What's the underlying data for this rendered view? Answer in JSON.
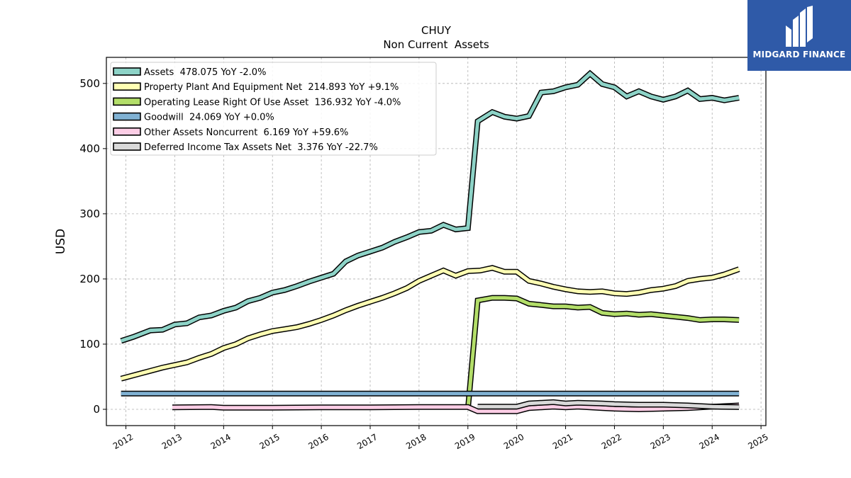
{
  "logo": {
    "brand": "MIDGARD FINANCE",
    "color": "#2f5aa8"
  },
  "chart_data": {
    "type": "line",
    "title": "CHUY",
    "subtitle": "Non Current  Assets",
    "ylabel": "USD",
    "xlabel": "",
    "xlim": [
      2011.6,
      2025.1
    ],
    "ylim": [
      -25,
      540
    ],
    "yticks": [
      0,
      100,
      200,
      300,
      400,
      500
    ],
    "xticks": [
      2012,
      2013,
      2014,
      2015,
      2016,
      2017,
      2018,
      2019,
      2020,
      2021,
      2022,
      2023,
      2024,
      2025
    ],
    "grid": true,
    "legend_position": "top-left",
    "series": [
      {
        "name": "Assets",
        "legend": "Assets  478.075 YoY -2.0%",
        "color": "#8dd3c7",
        "x": [
          2011.9,
          2012.15,
          2012.5,
          2012.75,
          2013.0,
          2013.25,
          2013.5,
          2013.75,
          2014.0,
          2014.25,
          2014.5,
          2014.75,
          2015.0,
          2015.25,
          2015.5,
          2015.75,
          2016.0,
          2016.25,
          2016.5,
          2016.75,
          2017.0,
          2017.25,
          2017.5,
          2017.75,
          2018.0,
          2018.25,
          2018.5,
          2018.75,
          2019.0,
          2019.2,
          2019.5,
          2019.75,
          2020.0,
          2020.25,
          2020.5,
          2020.75,
          2021.0,
          2021.25,
          2021.5,
          2021.75,
          2022.0,
          2022.25,
          2022.5,
          2022.75,
          2023.0,
          2023.25,
          2023.5,
          2023.75,
          2024.0,
          2024.25,
          2024.55
        ],
        "values": [
          105,
          111,
          121,
          122,
          130,
          132,
          141,
          144,
          151,
          156,
          166,
          171,
          179,
          183,
          189,
          196,
          202,
          208,
          227,
          236,
          242,
          248,
          257,
          264,
          272,
          274,
          283,
          276,
          278,
          442,
          456,
          449,
          446,
          450,
          486,
          488,
          494,
          498,
          515,
          499,
          494,
          480,
          488,
          480,
          475,
          480,
          489,
          476,
          478,
          474,
          478
        ]
      },
      {
        "name": "Property Plant And Equipment Net",
        "legend": "Property Plant And Equipment Net  214.893 YoY +9.1%",
        "color": "#ffffb3",
        "x": [
          2011.9,
          2012.25,
          2012.5,
          2012.75,
          2013.0,
          2013.25,
          2013.5,
          2013.75,
          2014.0,
          2014.25,
          2014.5,
          2014.75,
          2015.0,
          2015.25,
          2015.5,
          2015.75,
          2016.0,
          2016.25,
          2016.5,
          2016.75,
          2017.0,
          2017.25,
          2017.5,
          2017.75,
          2018.0,
          2018.25,
          2018.5,
          2018.75,
          2019.0,
          2019.25,
          2019.5,
          2019.75,
          2020.0,
          2020.25,
          2020.5,
          2020.75,
          2021.0,
          2021.25,
          2021.5,
          2021.75,
          2022.0,
          2022.25,
          2022.5,
          2022.75,
          2023.0,
          2023.25,
          2023.5,
          2023.75,
          2024.0,
          2024.25,
          2024.55
        ],
        "values": [
          47,
          54,
          59,
          64,
          68,
          72,
          79,
          85,
          94,
          100,
          109,
          115,
          120,
          123,
          126,
          131,
          137,
          144,
          152,
          159,
          165,
          171,
          178,
          186,
          197,
          205,
          213,
          205,
          212,
          213,
          217,
          211,
          211,
          197,
          193,
          188,
          184,
          181,
          180,
          181,
          178,
          177,
          179,
          183,
          185,
          189,
          197,
          200,
          202,
          207,
          215
        ]
      },
      {
        "name": "Operating Lease Right Of Use Asset",
        "legend": "Operating Lease Right Of Use Asset  136.932 YoY -4.0%",
        "color": "#b3de69",
        "x": [
          2019.0,
          2019.2,
          2019.5,
          2019.75,
          2020.0,
          2020.25,
          2020.5,
          2020.75,
          2021.0,
          2021.25,
          2021.5,
          2021.75,
          2022.0,
          2022.25,
          2022.5,
          2022.75,
          2023.0,
          2023.25,
          2023.5,
          2023.75,
          2024.0,
          2024.25,
          2024.55
        ],
        "values": [
          0,
          167,
          171,
          171,
          170,
          162,
          160,
          158,
          158,
          156,
          157,
          148,
          146,
          147,
          145,
          146,
          144,
          142,
          140,
          137,
          138,
          138,
          137
        ]
      },
      {
        "name": "Goodwill",
        "legend": "Goodwill  24.069 YoY +0.0%",
        "color": "#80b1d3",
        "x": [
          2011.9,
          2024.55
        ],
        "values": [
          24.069,
          24.069
        ]
      },
      {
        "name": "Other Assets Noncurrent",
        "legend": "Other Assets Noncurrent  6.169 YoY +59.6%",
        "color": "#fccde5",
        "x": [
          2012.95,
          2013.75,
          2014.0,
          2015.0,
          2016.0,
          2017.0,
          2018.0,
          2019.0,
          2019.2,
          2020.0,
          2020.25,
          2020.75,
          2021.0,
          2021.25,
          2021.75,
          2022.0,
          2022.5,
          2023.0,
          2023.5,
          2024.0,
          2024.55
        ],
        "values": [
          3,
          3.5,
          2.5,
          2.5,
          3,
          3,
          3.5,
          3.5,
          -3,
          -3,
          2,
          4,
          3,
          4,
          2,
          1,
          0,
          1,
          2,
          4,
          6
        ]
      },
      {
        "name": "Deferred Income Tax Assets Net",
        "legend": "Deferred Income Tax Assets Net  3.376 YoY -22.7%",
        "color": "#d9d9d9",
        "x": [
          2019.2,
          2020.0,
          2020.25,
          2020.75,
          2021.0,
          2021.25,
          2021.75,
          2022.0,
          2022.5,
          2023.0,
          2023.5,
          2024.0,
          2024.55
        ],
        "values": [
          4,
          4,
          9,
          11,
          9,
          10,
          9,
          8,
          7,
          7,
          6,
          4,
          3.4
        ]
      }
    ]
  }
}
